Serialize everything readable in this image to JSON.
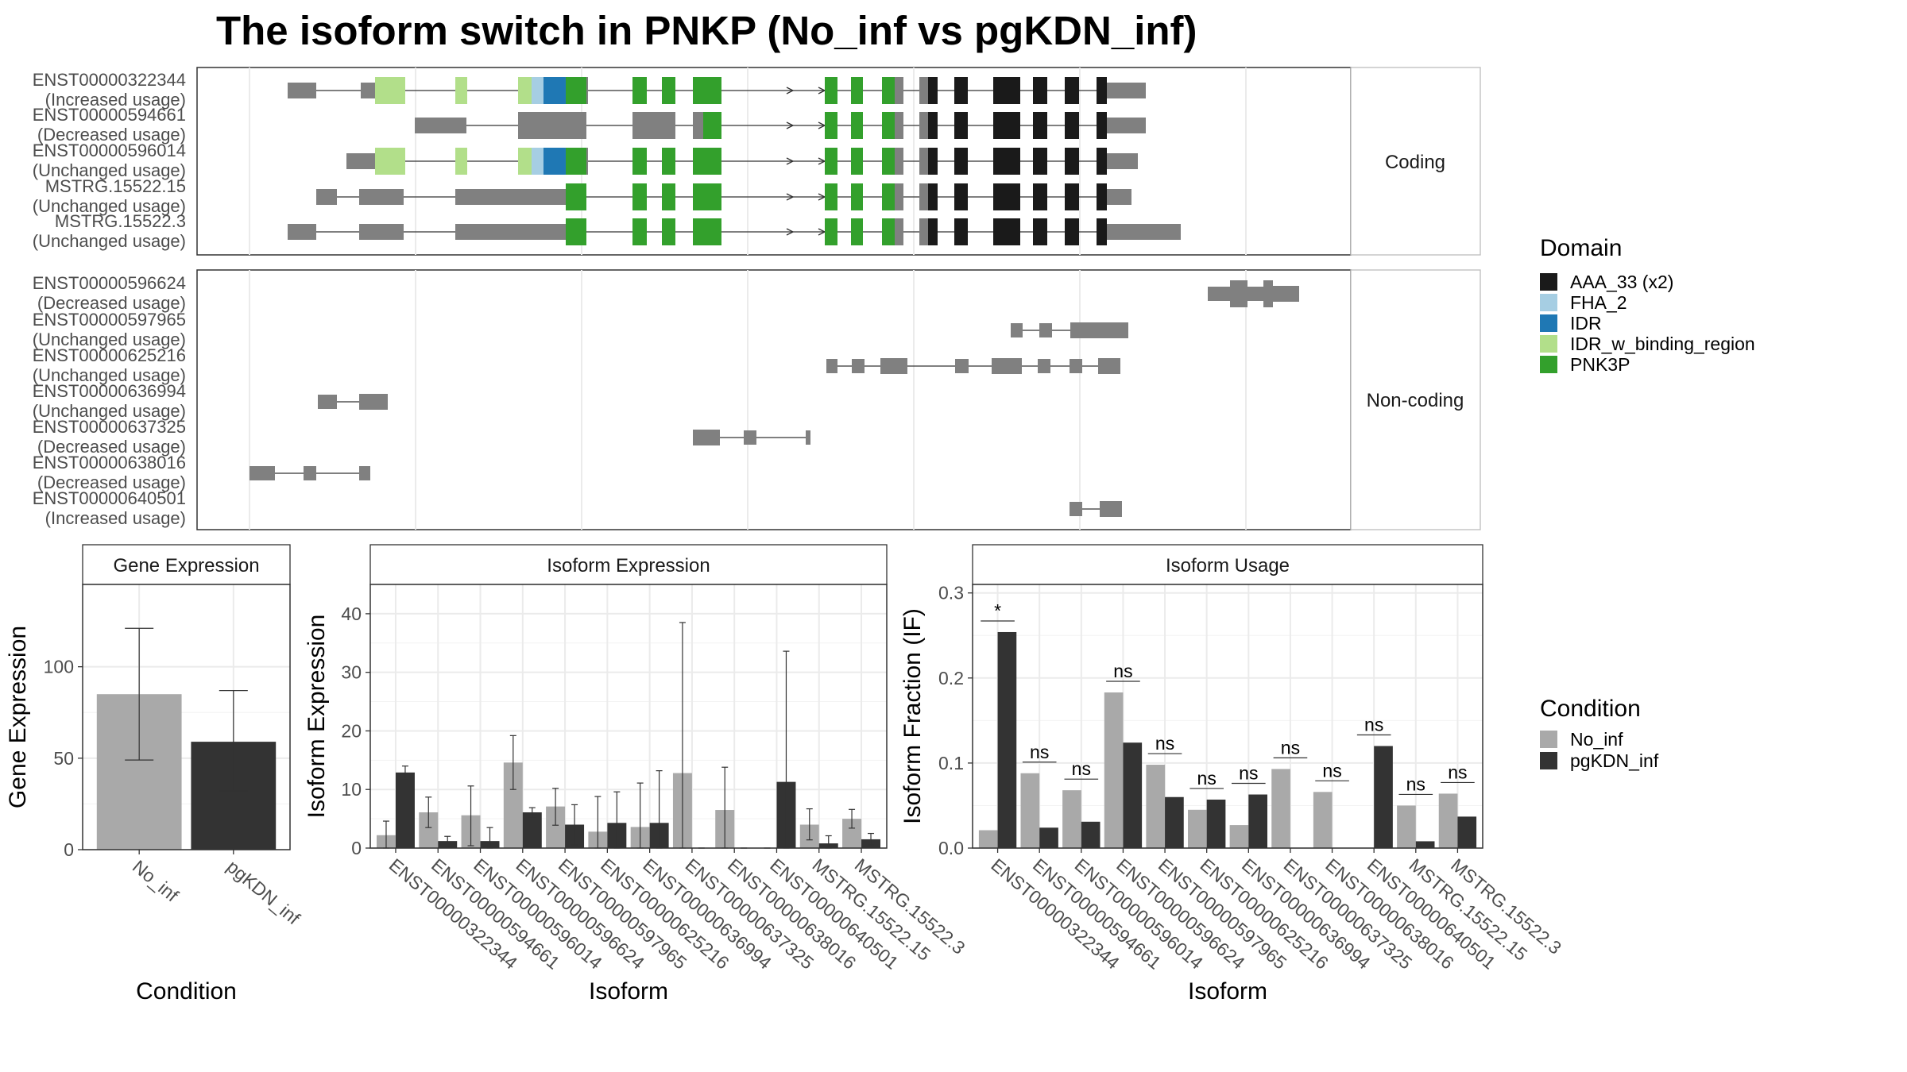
{
  "title": "The isoform switch in PNKP (No_inf vs pgKDN_inf)",
  "colors": {
    "No_inf": "#a9a9a9",
    "pgKDN_inf": "#333333",
    "exon": "#808080",
    "domains": {
      "AAA_33 (x2)": "#1a1a1a",
      "FHA_2": "#a6cee3",
      "IDR": "#1f78b4",
      "IDR_w_binding_region": "#b2df8a",
      "PNK3P": "#33a02c"
    }
  },
  "structure": {
    "facet_labels": [
      "Coding",
      "Non-coding"
    ],
    "coding_isoforms": [
      {
        "id": "ENST00000322344",
        "usage": "(Increased usage)"
      },
      {
        "id": "ENST00000594661",
        "usage": "(Decreased usage)"
      },
      {
        "id": "ENST00000596014",
        "usage": "(Unchanged usage)"
      },
      {
        "id": "MSTRG.15522.15",
        "usage": "(Unchanged usage)"
      },
      {
        "id": "MSTRG.15522.3",
        "usage": "(Unchanged usage)"
      }
    ],
    "noncoding_isoforms": [
      {
        "id": "ENST00000596624",
        "usage": "(Decreased usage)"
      },
      {
        "id": "ENST00000597965",
        "usage": "(Unchanged usage)"
      },
      {
        "id": "ENST00000625216",
        "usage": "(Unchanged usage)"
      },
      {
        "id": "ENST00000636994",
        "usage": "(Unchanged usage)"
      },
      {
        "id": "ENST00000637325",
        "usage": "(Decreased usage)"
      },
      {
        "id": "ENST00000638016",
        "usage": "(Decreased usage)"
      },
      {
        "id": "ENST00000640501",
        "usage": "(Increased usage)"
      }
    ]
  },
  "legend_domain": {
    "title": "Domain",
    "items": [
      "AAA_33 (x2)",
      "FHA_2",
      "IDR",
      "IDR_w_binding_region",
      "PNK3P"
    ]
  },
  "legend_condition": {
    "title": "Condition",
    "items": [
      "No_inf",
      "pgKDN_inf"
    ]
  },
  "chart_data": [
    {
      "type": "bar",
      "panel": "Gene Expression",
      "categories": [
        "No_inf",
        "pgKDN_inf"
      ],
      "values": [
        85,
        59
      ],
      "error": [
        [
          49,
          121
        ],
        [
          32,
          87
        ]
      ],
      "xlabel": "Condition",
      "ylabel": "Gene Expression",
      "ylim": [
        0,
        145
      ],
      "yticks": [
        0,
        50,
        100
      ]
    },
    {
      "type": "bar",
      "panel": "Isoform Expression",
      "categories": [
        "ENST00000322344",
        "ENST00000594661",
        "ENST00000596014",
        "ENST00000596624",
        "ENST00000597965",
        "ENST00000625216",
        "ENST00000636994",
        "ENST00000637325",
        "ENST00000638016",
        "ENST00000640501",
        "MSTRG.15522.15",
        "MSTRG.15522.3"
      ],
      "series": [
        {
          "name": "No_inf",
          "values": [
            2.2,
            6.1,
            5.6,
            14.6,
            7.1,
            2.8,
            3.6,
            12.8,
            6.5,
            0,
            4.0,
            5.0
          ],
          "error": [
            [
              0,
              4.6
            ],
            [
              3.5,
              8.7
            ],
            [
              0.4,
              10.6
            ],
            [
              10.0,
              19.2
            ],
            [
              3.9,
              10.2
            ],
            [
              0,
              8.8
            ],
            [
              0,
              11.1
            ],
            [
              0,
              38.5
            ],
            [
              0,
              13.8
            ],
            [
              0,
              0
            ],
            [
              1.4,
              6.7
            ],
            [
              3.4,
              6.6
            ]
          ]
        },
        {
          "name": "pgKDN_inf",
          "values": [
            12.9,
            1.2,
            1.2,
            6.1,
            4.0,
            4.3,
            4.3,
            0,
            0,
            11.3,
            0.8,
            1.5
          ],
          "error": [
            [
              11.8,
              14.0
            ],
            [
              0.3,
              2.0
            ],
            [
              0,
              3.5
            ],
            [
              5.2,
              6.9
            ],
            [
              0.5,
              7.4
            ],
            [
              0,
              9.6
            ],
            [
              0,
              13.2
            ],
            [
              0,
              0
            ],
            [
              0,
              0
            ],
            [
              0,
              33.6
            ],
            [
              0,
              2.1
            ],
            [
              0.5,
              2.5
            ]
          ]
        }
      ],
      "xlabel": "Isoform",
      "ylabel": "Isoform Expression",
      "ylim": [
        0,
        45
      ],
      "yticks": [
        0,
        10,
        20,
        30,
        40
      ]
    },
    {
      "type": "bar",
      "panel": "Isoform Usage",
      "categories": [
        "ENST00000322344",
        "ENST00000594661",
        "ENST00000596014",
        "ENST00000596624",
        "ENST00000597965",
        "ENST00000625216",
        "ENST00000636994",
        "ENST00000637325",
        "ENST00000638016",
        "ENST00000640501",
        "MSTRG.15522.15",
        "MSTRG.15522.3"
      ],
      "series": [
        {
          "name": "No_inf",
          "values": [
            0.021,
            0.088,
            0.068,
            0.183,
            0.098,
            0.045,
            0.027,
            0.093,
            0.066,
            0,
            0.05,
            0.064
          ]
        },
        {
          "name": "pgKDN_inf",
          "values": [
            0.254,
            0.024,
            0.031,
            0.124,
            0.06,
            0.057,
            0.063,
            0,
            0,
            0.12,
            0.008,
            0.037
          ]
        }
      ],
      "significance": [
        "*",
        "ns",
        "ns",
        "ns",
        "ns",
        "ns",
        "ns",
        "ns",
        "ns",
        "ns",
        "ns",
        "ns"
      ],
      "xlabel": "Isoform",
      "ylabel": "Isoform Fraction (IF)",
      "ylim": [
        0,
        0.31
      ],
      "yticks": [
        0.0,
        0.1,
        0.2,
        0.3
      ]
    }
  ]
}
